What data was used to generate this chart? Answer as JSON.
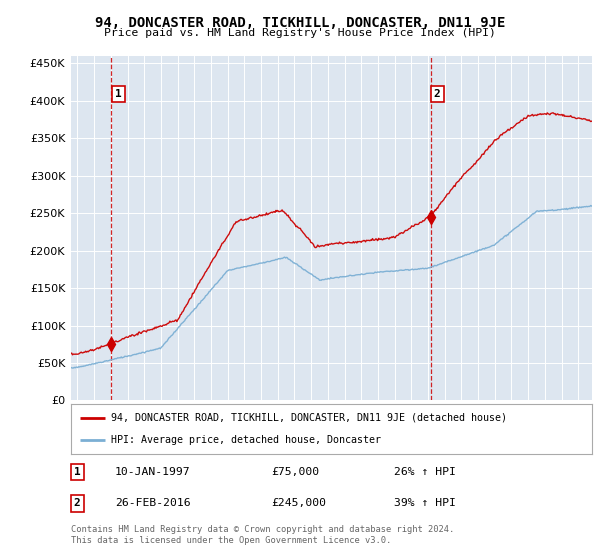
{
  "title": "94, DONCASTER ROAD, TICKHILL, DONCASTER, DN11 9JE",
  "subtitle": "Price paid vs. HM Land Registry's House Price Index (HPI)",
  "legend_line1": "94, DONCASTER ROAD, TICKHILL, DONCASTER, DN11 9JE (detached house)",
  "legend_line2": "HPI: Average price, detached house, Doncaster",
  "point1_date": "10-JAN-1997",
  "point1_price": "£75,000",
  "point1_hpi": "26% ↑ HPI",
  "point2_date": "26-FEB-2016",
  "point2_price": "£245,000",
  "point2_hpi": "39% ↑ HPI",
  "footer": "Contains HM Land Registry data © Crown copyright and database right 2024.\nThis data is licensed under the Open Government Licence v3.0.",
  "ylim": [
    0,
    460000
  ],
  "yticks": [
    0,
    50000,
    100000,
    150000,
    200000,
    250000,
    300000,
    350000,
    400000,
    450000
  ],
  "plot_bg_color": "#dde6f0",
  "red_color": "#cc0000",
  "blue_color": "#7bafd4",
  "point1_x_year": 1997.03,
  "point2_x_year": 2016.15,
  "xmin": 1994.6,
  "xmax": 2025.8
}
